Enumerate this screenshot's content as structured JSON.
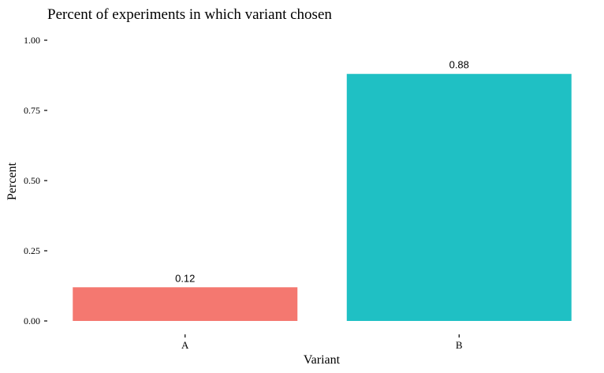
{
  "chart_data": {
    "type": "bar",
    "title": "Percent of experiments in which variant chosen",
    "xlabel": "Variant",
    "ylabel": "Percent",
    "categories": [
      "A",
      "B"
    ],
    "values": [
      0.12,
      0.88
    ],
    "data_labels": [
      "0.12",
      "0.88"
    ],
    "colors": [
      "#F47870",
      "#1FC0C4"
    ],
    "ylim": [
      0,
      1
    ],
    "yticks": [
      0,
      0.25,
      0.5,
      0.75,
      1.0
    ],
    "ytick_labels": [
      "0.00",
      "0.25",
      "0.50",
      "0.75",
      "1.00"
    ],
    "grid": false,
    "legend": "none"
  }
}
